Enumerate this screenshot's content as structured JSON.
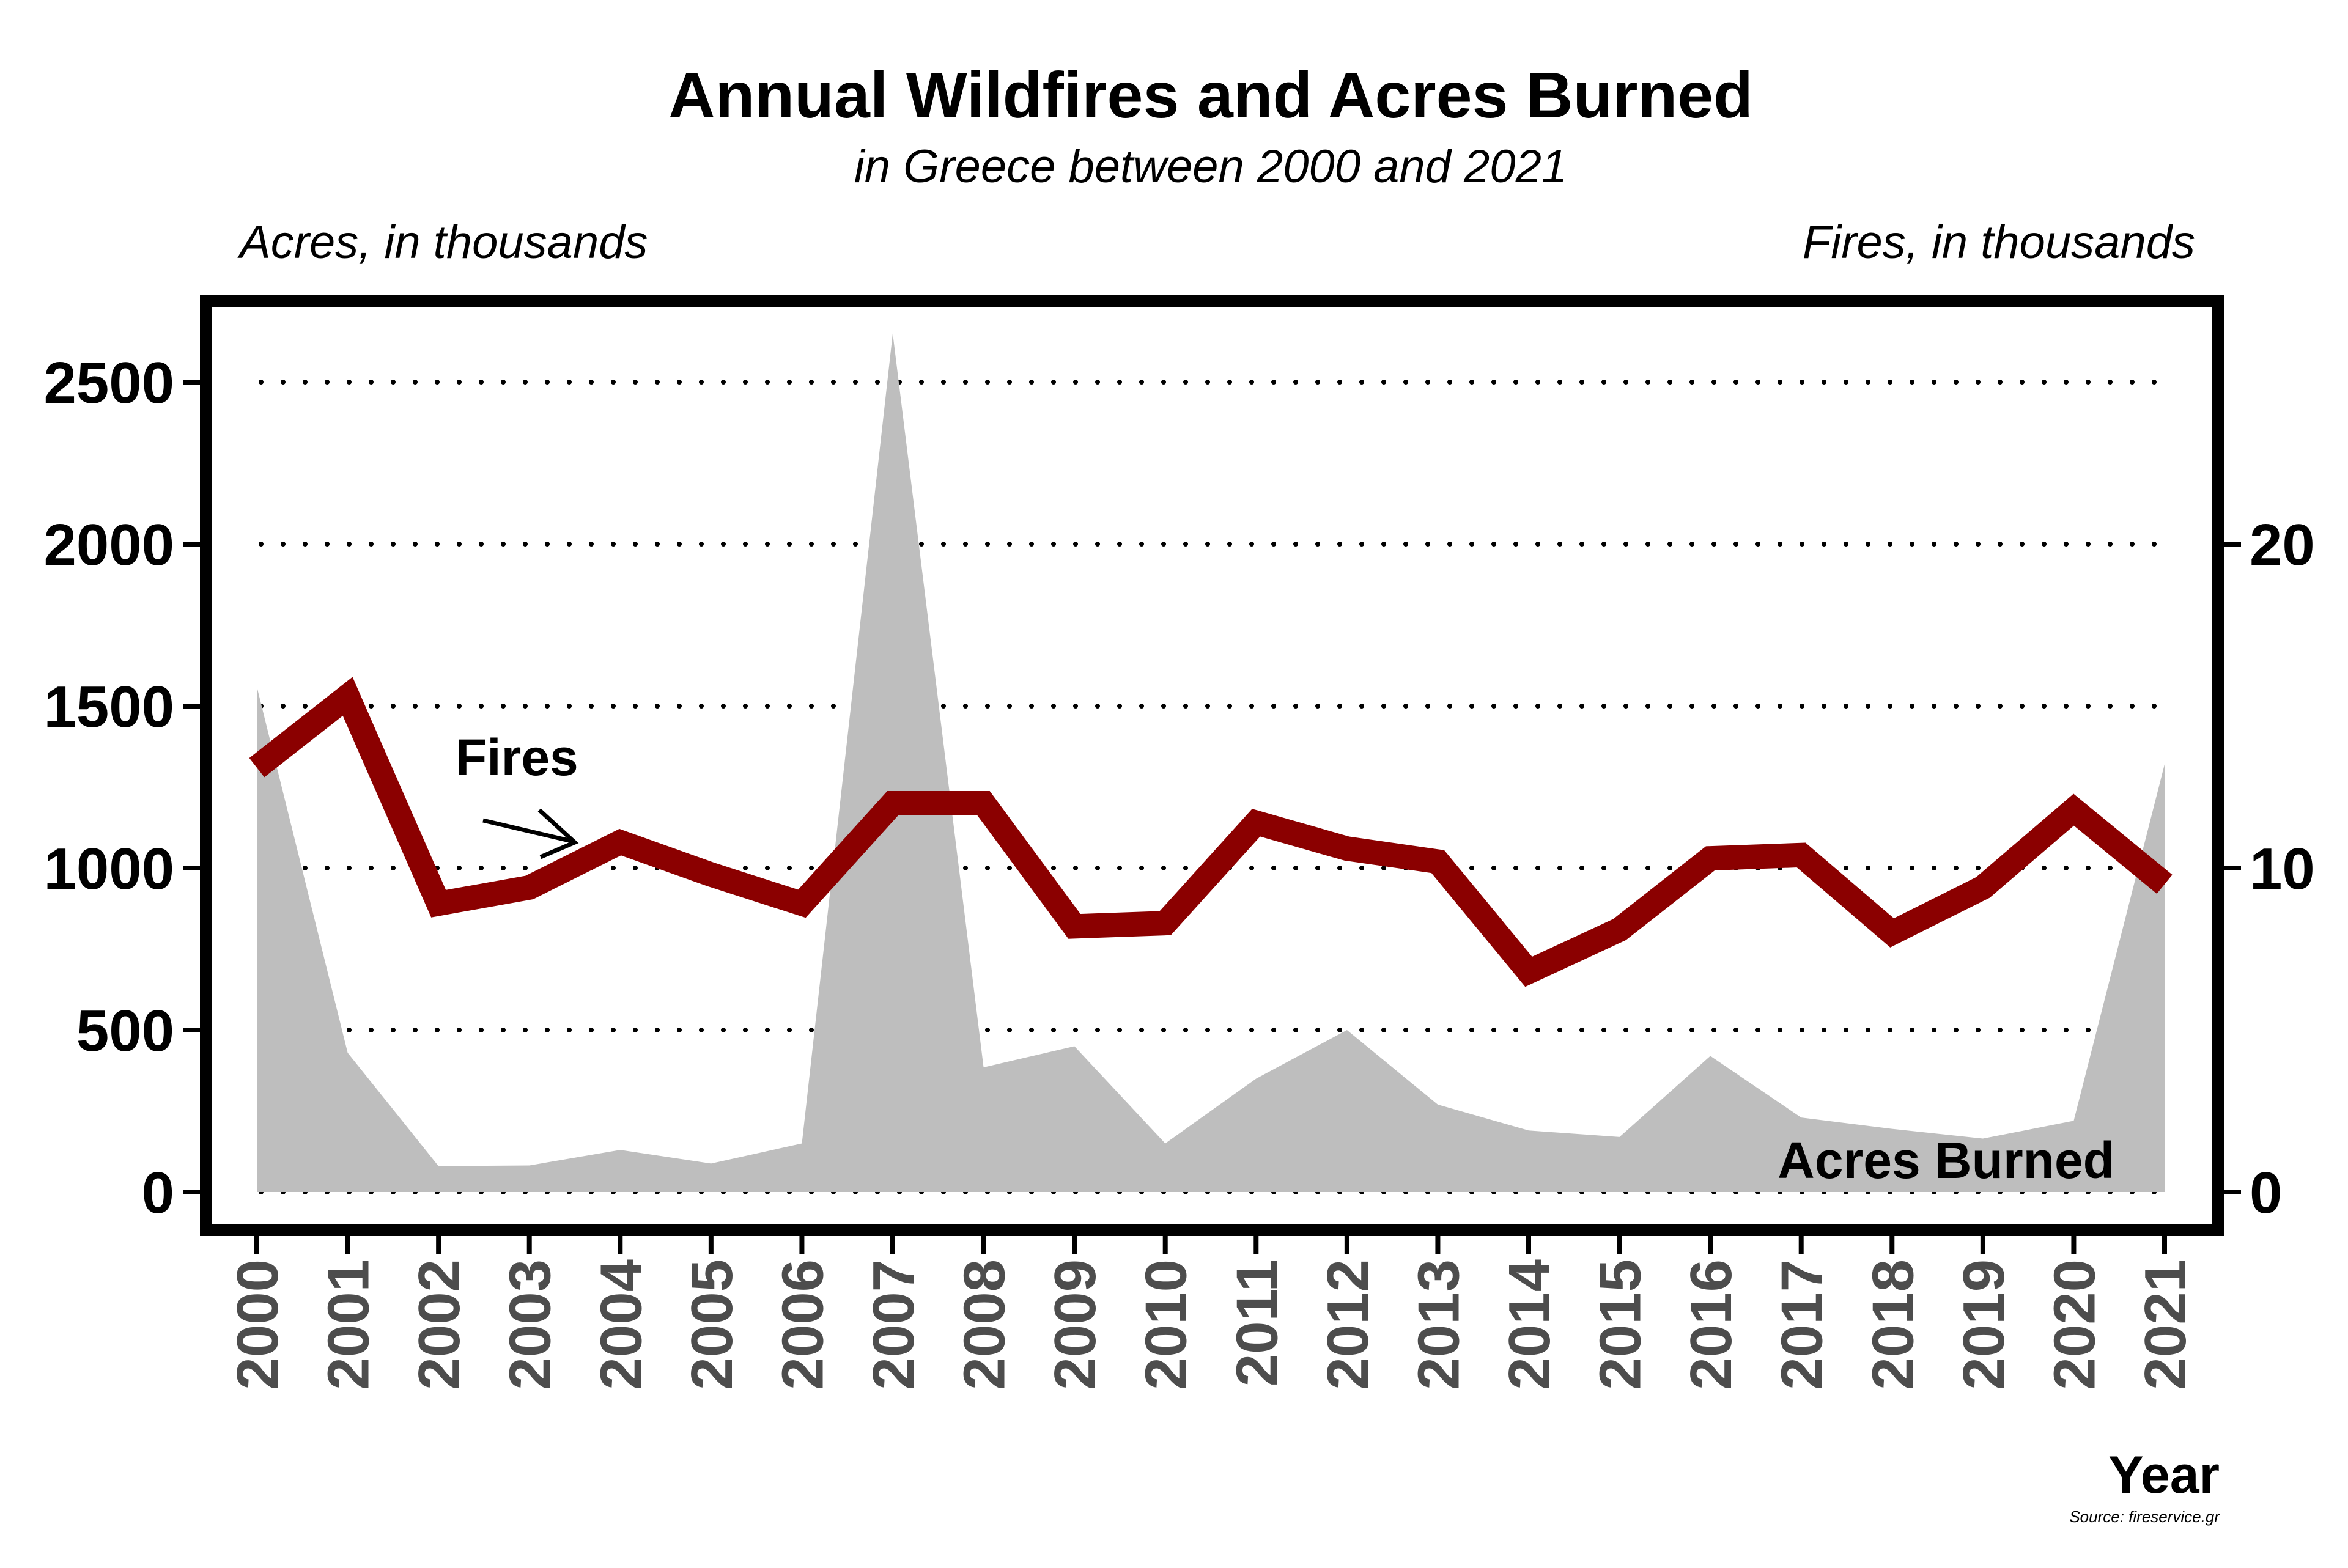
{
  "chart_data": {
    "type": "line",
    "title": "Annual Wildfires and Acres Burned",
    "subtitle": "in Greece between 2000 and 2021",
    "left_axis_label": "Acres, in thousands",
    "right_axis_label": "Fires, in thousands",
    "xlabel": "Year",
    "source": "Source: fireservice.gr",
    "categories": [
      "2000",
      "2001",
      "2002",
      "2003",
      "2004",
      "2005",
      "2006",
      "2007",
      "2008",
      "2009",
      "2010",
      "2011",
      "2012",
      "2013",
      "2014",
      "2015",
      "2016",
      "2017",
      "2018",
      "2019",
      "2020",
      "2021"
    ],
    "series": [
      {
        "name": "Acres Burned",
        "type": "area",
        "axis": "left",
        "color": "#bebebe",
        "values": [
          1560,
          430,
          80,
          82,
          130,
          88,
          150,
          2650,
          385,
          450,
          150,
          350,
          500,
          270,
          190,
          170,
          420,
          230,
          195,
          165,
          220,
          1320
        ]
      },
      {
        "name": "Fires",
        "type": "line",
        "axis": "right",
        "color": "#8b0000",
        "values": [
          13.1,
          15.3,
          8.9,
          9.4,
          10.8,
          9.8,
          8.9,
          12.0,
          12.0,
          8.2,
          8.3,
          11.4,
          10.6,
          10.2,
          6.8,
          8.1,
          10.3,
          10.4,
          8.0,
          9.4,
          11.8,
          9.5
        ]
      }
    ],
    "left_ylim": [
      0,
      2750
    ],
    "left_yticks": [
      "0",
      "500",
      "1000",
      "1500",
      "2000",
      "2500"
    ],
    "right_ylim": [
      0,
      27.5
    ],
    "right_yticks": [
      "0",
      "10",
      "20"
    ],
    "grid": "horizontal dotted",
    "annotations": {
      "fires_label": "Fires",
      "acres_label": "Acres Burned"
    }
  }
}
